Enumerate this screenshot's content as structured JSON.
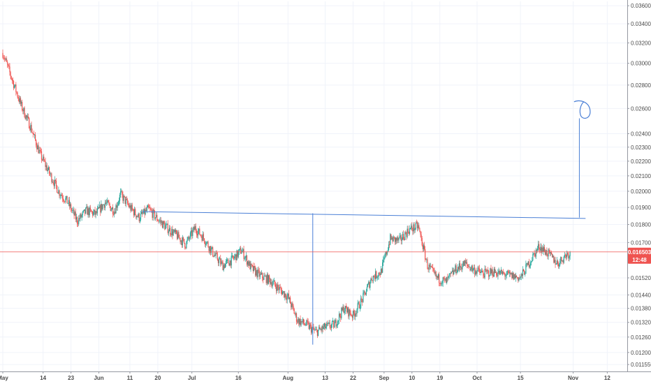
{
  "chart_data": {
    "type": "candlestick",
    "y_axis": {
      "scale": "log",
      "range": [
        0.0113,
        0.0365
      ],
      "tick_labels": [
        "0.036000",
        "0.034000",
        "0.032000",
        "0.030000",
        "0.028000",
        "0.026000",
        "0.024000",
        "0.023000",
        "0.022000",
        "0.021000",
        "0.020000",
        "0.019000",
        "0.018000",
        "0.017000",
        "0.015200",
        "0.014400",
        "0.013800",
        "0.013200",
        "0.012600",
        "0.012000",
        "0.011550"
      ],
      "tick_values": [
        0.036,
        0.034,
        0.032,
        0.03,
        0.028,
        0.026,
        0.024,
        0.023,
        0.022,
        0.021,
        0.02,
        0.019,
        0.018,
        0.017,
        0.0152,
        0.0144,
        0.0138,
        0.0132,
        0.0126,
        0.012,
        0.01155
      ]
    },
    "x_axis": {
      "tick_labels": [
        "May",
        "14",
        "23",
        "Jun",
        "11",
        "20",
        "Jul",
        "16",
        "Aug",
        "13",
        "22",
        "Sep",
        "10",
        "19",
        "Oct",
        "15",
        "Nov",
        "12"
      ],
      "tick_dates": [
        "2018-05-01",
        "2018-05-14",
        "2018-05-23",
        "2018-06-01",
        "2018-06-11",
        "2018-06-20",
        "2018-07-01",
        "2018-07-16",
        "2018-08-01",
        "2018-08-13",
        "2018-08-22",
        "2018-09-01",
        "2018-09-10",
        "2018-09-19",
        "2018-10-01",
        "2018-10-15",
        "2018-11-01",
        "2018-11-12"
      ]
    },
    "grid": true,
    "current_price": {
      "value": "0.016503",
      "countdown": "12:48",
      "color": "#ef5350",
      "level": 0.016503
    },
    "colors": {
      "up": "#26a69a",
      "down": "#ef5350",
      "drawing": "#4a7fd6"
    },
    "series": [
      {
        "date": "2018-05-01",
        "close": 0.031
      },
      {
        "date": "2018-05-04",
        "close": 0.0285
      },
      {
        "date": "2018-05-07",
        "close": 0.0262
      },
      {
        "date": "2018-05-10",
        "close": 0.0245
      },
      {
        "date": "2018-05-13",
        "close": 0.0225
      },
      {
        "date": "2018-05-16",
        "close": 0.0212
      },
      {
        "date": "2018-05-19",
        "close": 0.02
      },
      {
        "date": "2018-05-22",
        "close": 0.0193
      },
      {
        "date": "2018-05-25",
        "close": 0.0182
      },
      {
        "date": "2018-05-28",
        "close": 0.0188
      },
      {
        "date": "2018-05-31",
        "close": 0.0186
      },
      {
        "date": "2018-06-03",
        "close": 0.0193
      },
      {
        "date": "2018-06-06",
        "close": 0.0188
      },
      {
        "date": "2018-06-08",
        "close": 0.0198
      },
      {
        "date": "2018-06-11",
        "close": 0.019
      },
      {
        "date": "2018-06-14",
        "close": 0.0184
      },
      {
        "date": "2018-06-17",
        "close": 0.0189
      },
      {
        "date": "2018-06-20",
        "close": 0.0183
      },
      {
        "date": "2018-06-23",
        "close": 0.0178
      },
      {
        "date": "2018-06-26",
        "close": 0.0174
      },
      {
        "date": "2018-06-29",
        "close": 0.0169
      },
      {
        "date": "2018-07-02",
        "close": 0.0178
      },
      {
        "date": "2018-07-05",
        "close": 0.0172
      },
      {
        "date": "2018-07-08",
        "close": 0.0164
      },
      {
        "date": "2018-07-11",
        "close": 0.0158
      },
      {
        "date": "2018-07-14",
        "close": 0.0161
      },
      {
        "date": "2018-07-17",
        "close": 0.0166
      },
      {
        "date": "2018-07-20",
        "close": 0.0157
      },
      {
        "date": "2018-07-23",
        "close": 0.0153
      },
      {
        "date": "2018-07-26",
        "close": 0.0151
      },
      {
        "date": "2018-07-29",
        "close": 0.0147
      },
      {
        "date": "2018-08-01",
        "close": 0.0143
      },
      {
        "date": "2018-08-04",
        "close": 0.0133
      },
      {
        "date": "2018-08-07",
        "close": 0.0131
      },
      {
        "date": "2018-08-10",
        "close": 0.0128
      },
      {
        "date": "2018-08-13",
        "close": 0.013
      },
      {
        "date": "2018-08-16",
        "close": 0.0131
      },
      {
        "date": "2018-08-19",
        "close": 0.0138
      },
      {
        "date": "2018-08-22",
        "close": 0.0135
      },
      {
        "date": "2018-08-25",
        "close": 0.0142
      },
      {
        "date": "2018-08-28",
        "close": 0.0152
      },
      {
        "date": "2018-08-31",
        "close": 0.0155
      },
      {
        "date": "2018-09-03",
        "close": 0.0172
      },
      {
        "date": "2018-09-06",
        "close": 0.0171
      },
      {
        "date": "2018-09-09",
        "close": 0.0177
      },
      {
        "date": "2018-09-12",
        "close": 0.0179
      },
      {
        "date": "2018-09-15",
        "close": 0.0158
      },
      {
        "date": "2018-09-18",
        "close": 0.0152
      },
      {
        "date": "2018-09-21",
        "close": 0.015
      },
      {
        "date": "2018-09-24",
        "close": 0.0156
      },
      {
        "date": "2018-09-27",
        "close": 0.0159
      },
      {
        "date": "2018-09-30",
        "close": 0.0156
      },
      {
        "date": "2018-10-03",
        "close": 0.0154
      },
      {
        "date": "2018-10-06",
        "close": 0.0155
      },
      {
        "date": "2018-10-09",
        "close": 0.0154
      },
      {
        "date": "2018-10-12",
        "close": 0.0153
      },
      {
        "date": "2018-10-15",
        "close": 0.0152
      },
      {
        "date": "2018-10-18",
        "close": 0.016
      },
      {
        "date": "2018-10-21",
        "close": 0.0168
      },
      {
        "date": "2018-10-24",
        "close": 0.0164
      },
      {
        "date": "2018-10-27",
        "close": 0.0159
      },
      {
        "date": "2018-10-30",
        "close": 0.0164
      }
    ],
    "drawings": {
      "neckline": [
        {
          "date": "2018-06-15",
          "price": 0.01875
        },
        {
          "date": "2018-11-05",
          "price": 0.01835
        }
      ],
      "depth_line": {
        "date": "2018-08-09",
        "from": 0.01865,
        "to": 0.0123
      },
      "target_line": {
        "date": "2018-11-03",
        "from": 0.0184,
        "to": 0.0252
      },
      "target_circle": {
        "date": "2018-11-04",
        "price": 0.0258
      }
    }
  }
}
